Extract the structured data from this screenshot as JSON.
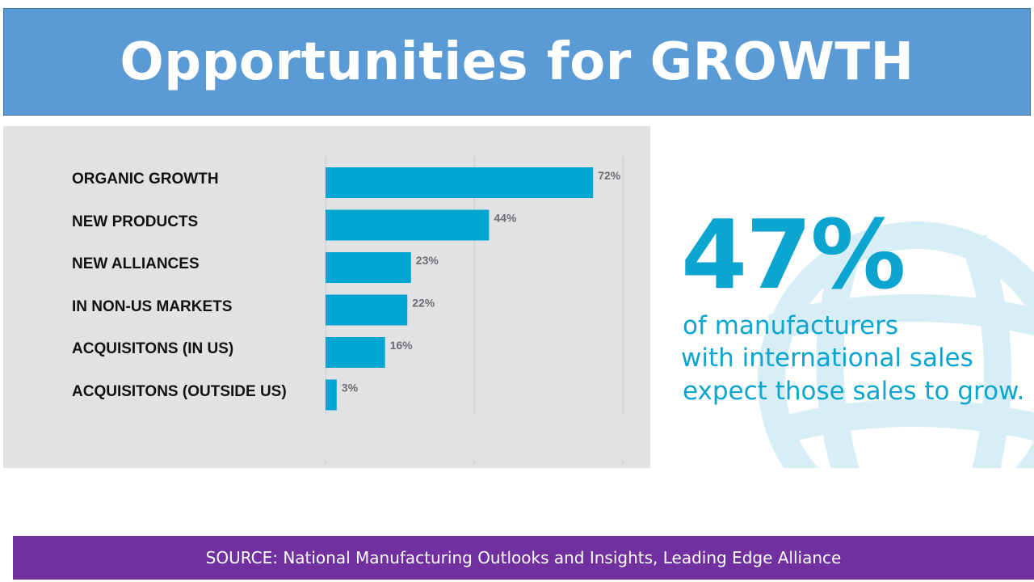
{
  "title": "Opportunities for GROWTH",
  "chart_data": {
    "type": "bar",
    "orientation": "horizontal",
    "categories": [
      "ORGANIC GROWTH",
      "NEW PRODUCTS",
      "NEW ALLIANCES",
      "IN NON-US MARKETS",
      "ACQUISITONS (IN US)",
      "ACQUISITONS (OUTSIDE US)"
    ],
    "values": [
      72,
      44,
      23,
      22,
      16,
      3
    ],
    "value_labels": [
      "72%",
      "44%",
      "23%",
      "22%",
      "16%",
      "3%"
    ],
    "xlim": [
      0,
      80
    ],
    "grid": true,
    "bar_color": "#00a6d2"
  },
  "stat": {
    "number": "47%",
    "lines": [
      "of manufacturers",
      "with international sales",
      "expect those sales to grow."
    ],
    "color": "#0ba5d0"
  },
  "source": "SOURCE: National Manufacturing Outlooks and Insights, Leading Edge Alliance"
}
